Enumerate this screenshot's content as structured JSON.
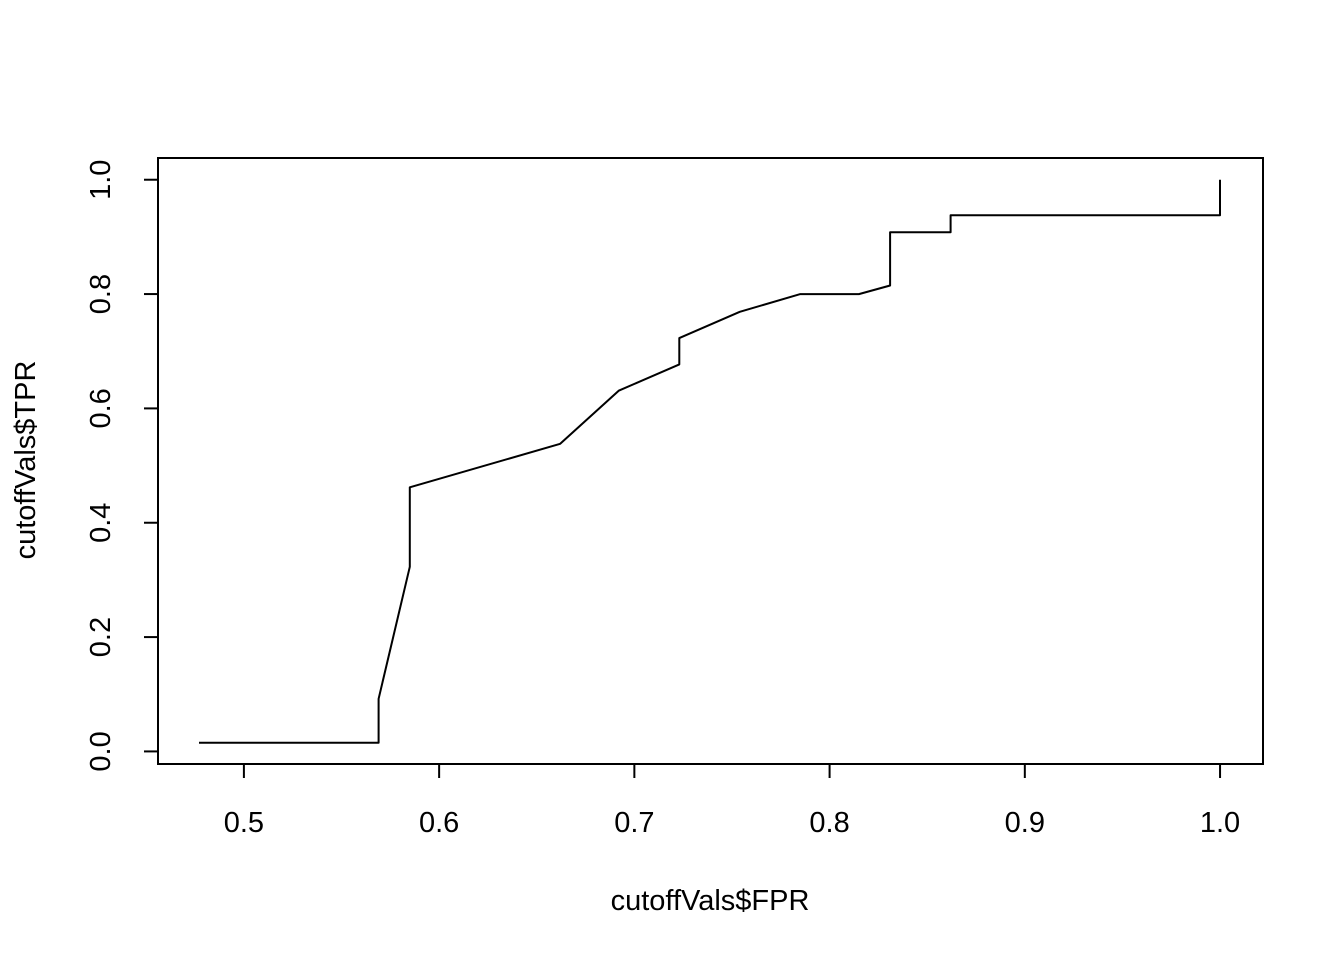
{
  "chart_data": {
    "type": "line",
    "xlabel": "cutoffVals$FPR",
    "ylabel": "cutoffVals$TPR",
    "xlim": [
      0.456,
      1.022
    ],
    "ylim": [
      -0.022,
      1.038
    ],
    "x_ticks": [
      0.5,
      0.6,
      0.7,
      0.8,
      0.9,
      1.0
    ],
    "x_tick_labels": [
      "0.5",
      "0.6",
      "0.7",
      "0.8",
      "0.9",
      "1.0"
    ],
    "y_ticks": [
      0.0,
      0.2,
      0.4,
      0.6,
      0.8,
      1.0
    ],
    "y_tick_labels": [
      "0.0",
      "0.2",
      "0.4",
      "0.6",
      "0.8",
      "1.0"
    ],
    "grid": false,
    "line_color": "#000000",
    "series": [
      {
        "x": [
          0.477,
          0.569,
          0.569,
          0.585,
          0.585,
          0.662,
          0.692,
          0.723,
          0.723,
          0.754,
          0.785,
          0.815,
          0.831,
          0.831,
          0.862,
          0.862,
          1.0,
          1.0
        ],
        "y": [
          0.015,
          0.015,
          0.092,
          0.323,
          0.462,
          0.538,
          0.631,
          0.677,
          0.723,
          0.769,
          0.8,
          0.8,
          0.815,
          0.908,
          0.908,
          0.938,
          0.938,
          1.0
        ]
      }
    ]
  }
}
